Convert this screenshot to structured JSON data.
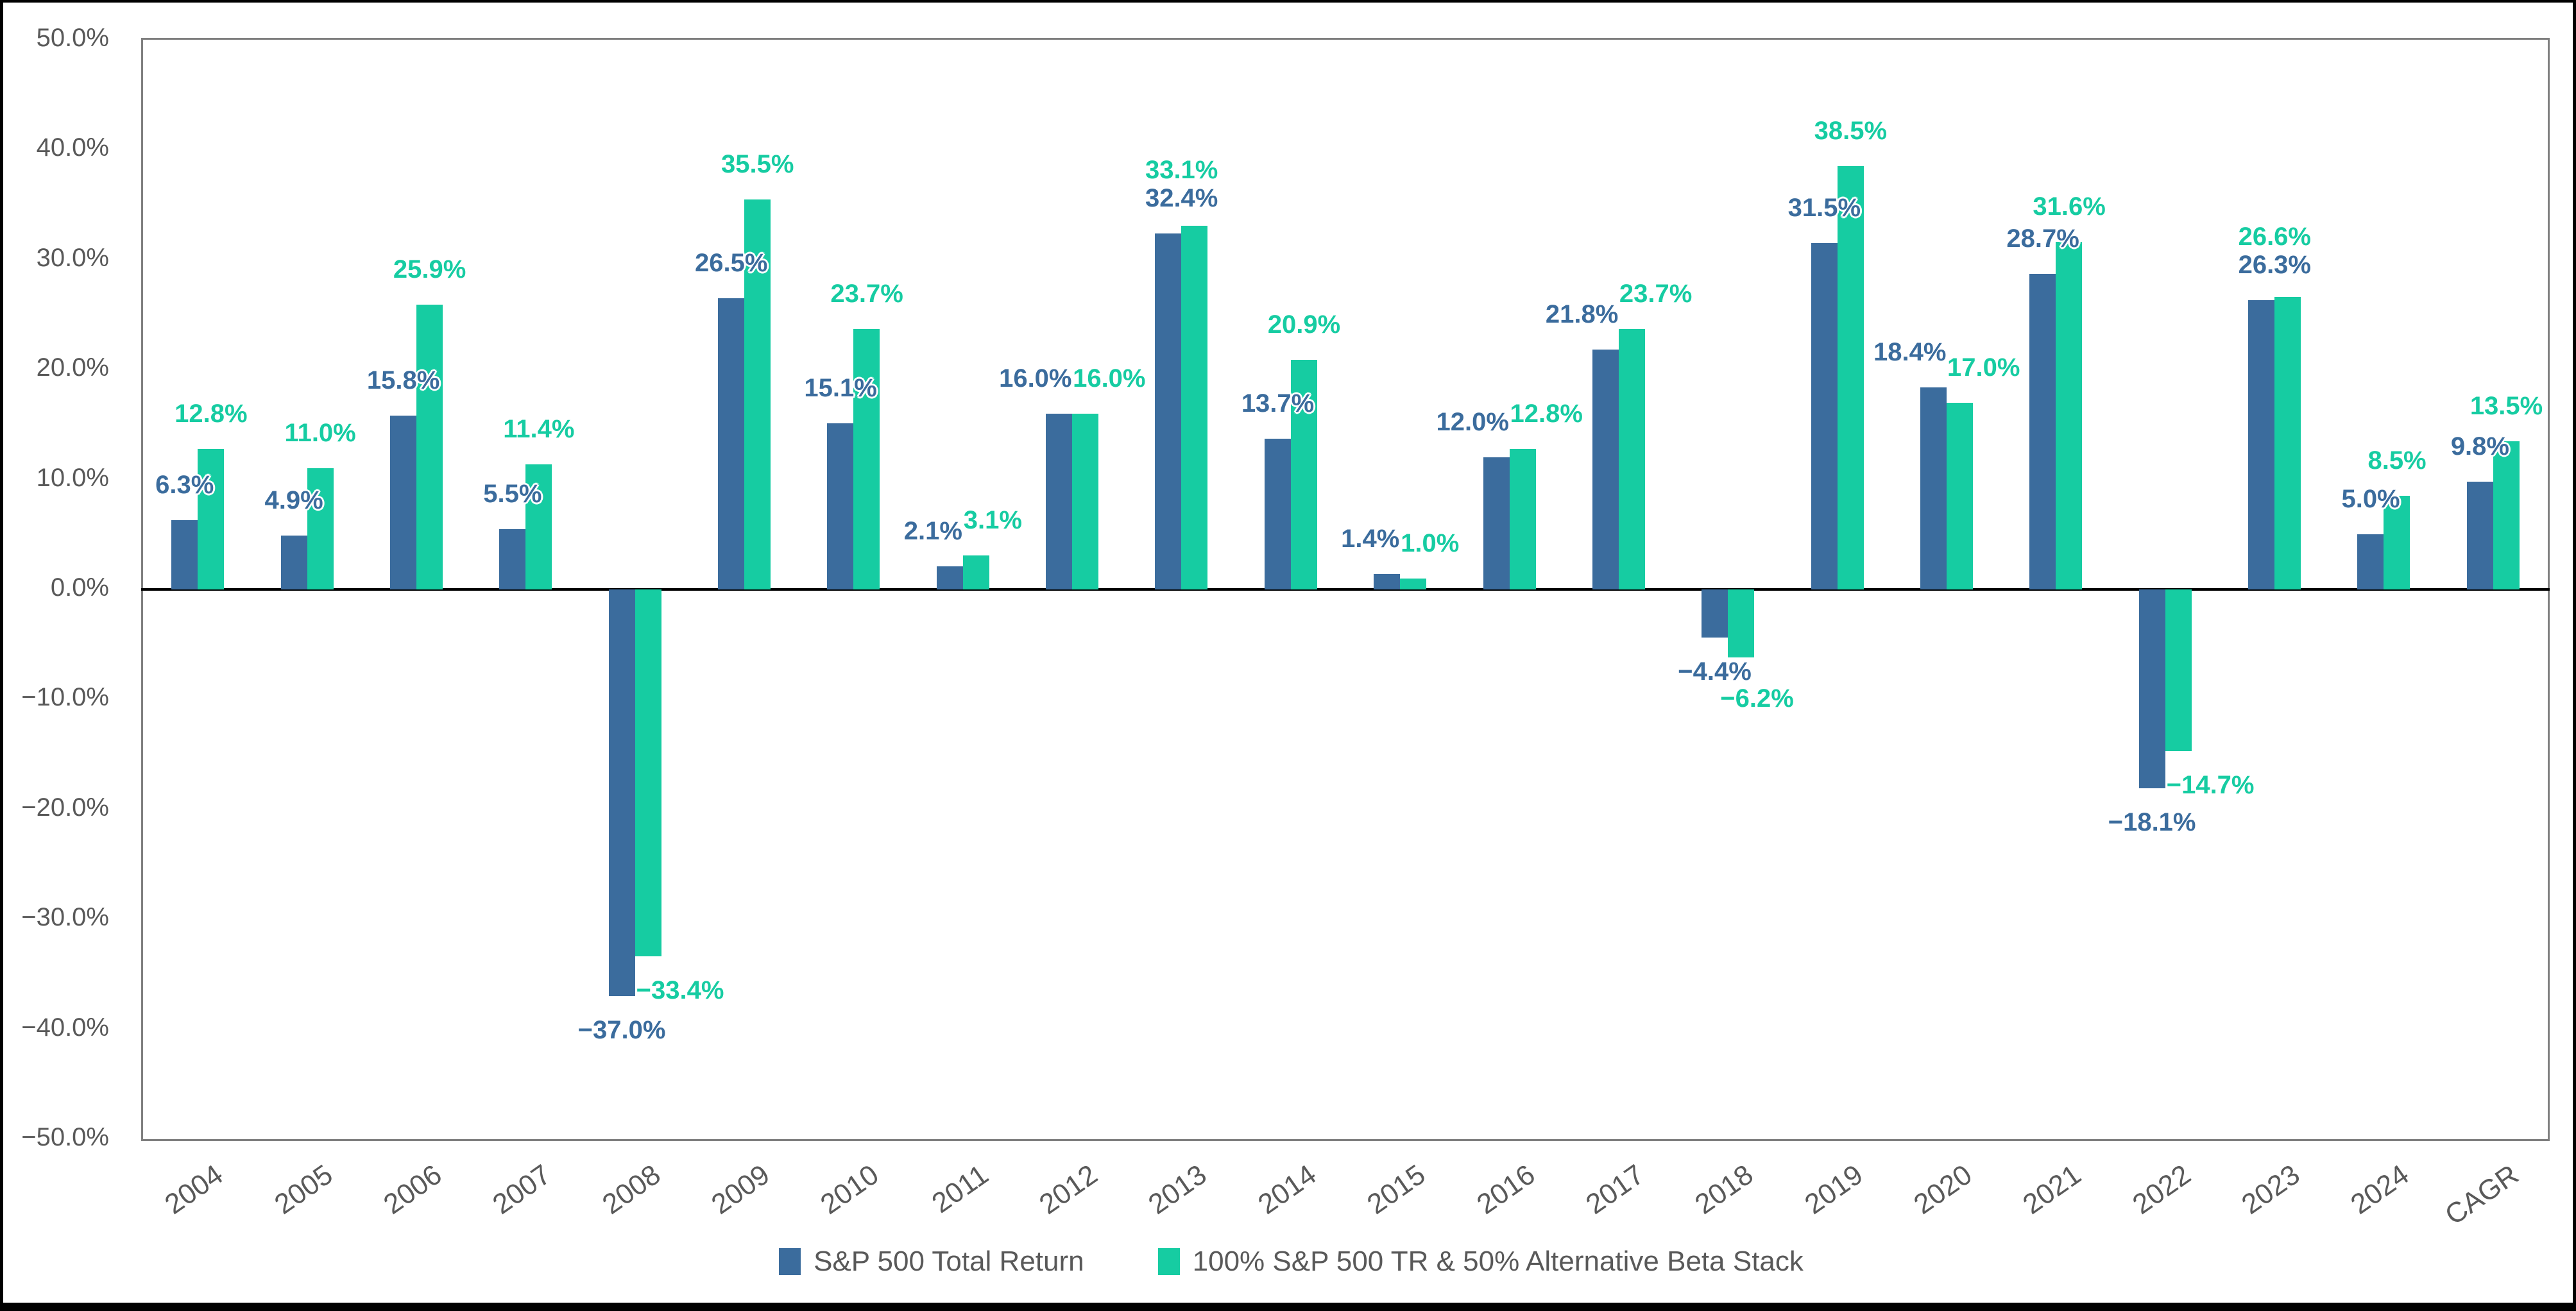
{
  "chart_data": {
    "type": "bar",
    "title": "",
    "categories": [
      "2004",
      "2005",
      "2006",
      "2007",
      "2008",
      "2009",
      "2010",
      "2011",
      "2012",
      "2013",
      "2014",
      "2015",
      "2016",
      "2017",
      "2018",
      "2019",
      "2020",
      "2021",
      "2022",
      "2023",
      "2024",
      "CAGR"
    ],
    "series": [
      {
        "name": "S&P 500 Total Return",
        "color": "#3B6C9D",
        "values": [
          6.3,
          4.9,
          15.8,
          5.5,
          -37.0,
          26.5,
          15.1,
          2.1,
          16.0,
          32.4,
          13.7,
          1.4,
          12.0,
          21.8,
          -4.4,
          31.5,
          18.4,
          28.7,
          -18.1,
          26.3,
          5.0,
          9.8
        ]
      },
      {
        "name": "100% S&P 500 TR & 50% Alternative Beta Stack",
        "color": "#16CCA2",
        "values": [
          12.8,
          11.0,
          25.9,
          11.4,
          -33.4,
          35.5,
          23.7,
          3.1,
          16.0,
          33.1,
          20.9,
          1.0,
          12.8,
          23.7,
          -6.2,
          38.5,
          17.0,
          31.6,
          -14.7,
          26.6,
          8.5,
          13.5
        ]
      }
    ],
    "ylim": [
      -50,
      50
    ],
    "yticks": [
      50,
      40,
      30,
      20,
      10,
      0,
      -10,
      -20,
      -30,
      -40,
      -50
    ],
    "ytick_format": "0.0%",
    "grid": false,
    "legend_position": "bottom",
    "axis_text_color": "#595959",
    "plot_border_color": "#7f7f7f",
    "zero_line_color": "#000000"
  }
}
